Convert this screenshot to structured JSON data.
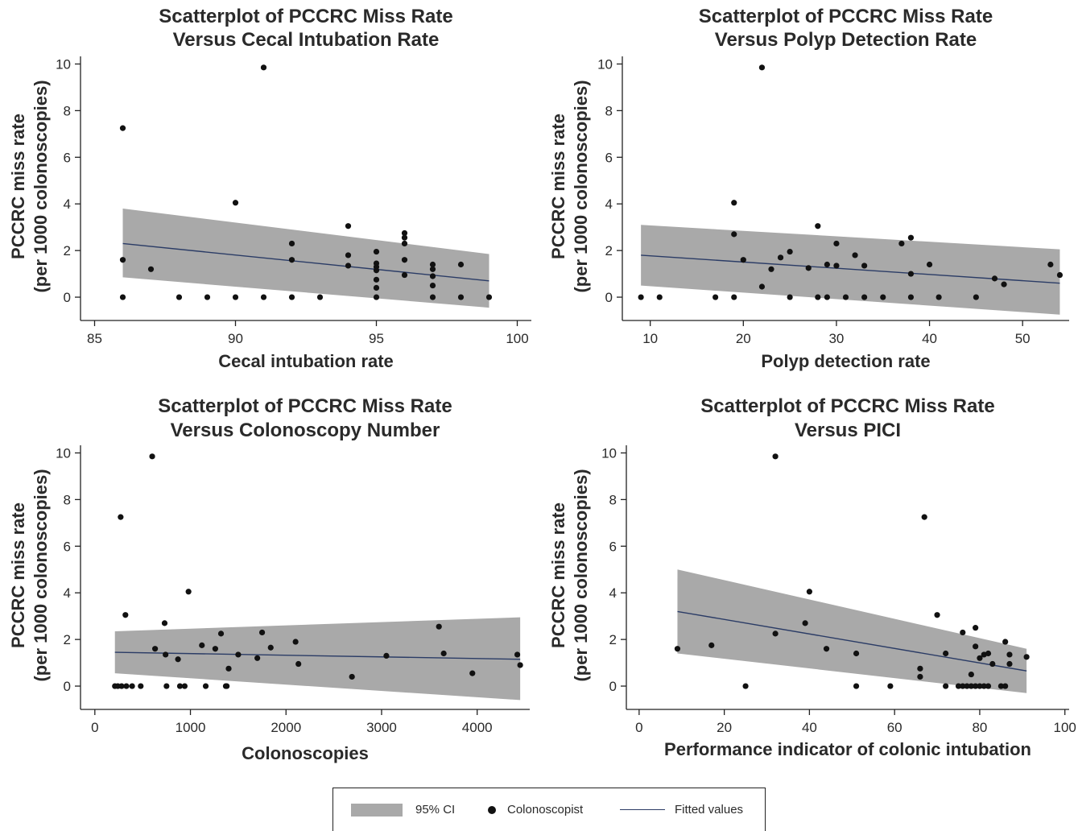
{
  "chart_data": [
    {
      "type": "scatter",
      "title_lines": [
        "Scatterplot of PCCRC Miss Rate",
        "Versus Cecal Intubation Rate"
      ],
      "xlabel": "Cecal intubation rate",
      "ylabel_lines": [
        "PCCRC miss rate",
        "(per 1000 colonoscopies)"
      ],
      "xlim": [
        84.5,
        100.5
      ],
      "ylim": [
        -1,
        10.5
      ],
      "xticks": [
        85,
        90,
        95,
        100
      ],
      "yticks": [
        0,
        2,
        4,
        6,
        8,
        10
      ],
      "grid": false,
      "points": [
        [
          86,
          7.25
        ],
        [
          86,
          1.6
        ],
        [
          86,
          0
        ],
        [
          87,
          1.2
        ],
        [
          88,
          0
        ],
        [
          89,
          0
        ],
        [
          90,
          4.05
        ],
        [
          90,
          0
        ],
        [
          91,
          9.85
        ],
        [
          91,
          0
        ],
        [
          92,
          2.3
        ],
        [
          92,
          1.6
        ],
        [
          92,
          0
        ],
        [
          93,
          0
        ],
        [
          94,
          3.05
        ],
        [
          94,
          1.8
        ],
        [
          94,
          1.35
        ],
        [
          95,
          1.95
        ],
        [
          95,
          1.45
        ],
        [
          95,
          1.3
        ],
        [
          95,
          1.15
        ],
        [
          95,
          0.75
        ],
        [
          95,
          0.4
        ],
        [
          95,
          0
        ],
        [
          96,
          2.75
        ],
        [
          96,
          2.55
        ],
        [
          96,
          2.3
        ],
        [
          96,
          1.6
        ],
        [
          96,
          0.95
        ],
        [
          97,
          1.4
        ],
        [
          97,
          1.2
        ],
        [
          97,
          0.9
        ],
        [
          97,
          0.5
        ],
        [
          97,
          0
        ],
        [
          98,
          1.4
        ],
        [
          98,
          0
        ],
        [
          99,
          0
        ]
      ],
      "fit": {
        "x": [
          86,
          99
        ],
        "y": [
          2.3,
          0.7
        ]
      },
      "ci": {
        "x": [
          86,
          99
        ],
        "upper": [
          3.8,
          1.85
        ],
        "lower": [
          0.85,
          -0.45
        ]
      }
    },
    {
      "type": "scatter",
      "title_lines": [
        "Scatterplot of PCCRC Miss Rate",
        "Versus Polyp Detection Rate"
      ],
      "xlabel": "Polyp detection rate",
      "ylabel_lines": [
        "PCCRC miss rate",
        "(per 1000 colonoscopies)"
      ],
      "xlim": [
        7,
        55
      ],
      "ylim": [
        -1,
        10.5
      ],
      "xticks": [
        10,
        20,
        30,
        40,
        50
      ],
      "yticks": [
        0,
        2,
        4,
        6,
        8,
        10
      ],
      "grid": false,
      "points": [
        [
          9,
          0
        ],
        [
          11,
          0
        ],
        [
          17,
          0
        ],
        [
          19,
          4.05
        ],
        [
          19,
          2.7
        ],
        [
          19,
          0
        ],
        [
          20,
          1.6
        ],
        [
          22,
          9.85
        ],
        [
          22,
          0.45
        ],
        [
          23,
          1.2
        ],
        [
          24,
          1.7
        ],
        [
          25,
          1.95
        ],
        [
          25,
          0
        ],
        [
          27,
          1.25
        ],
        [
          28,
          3.05
        ],
        [
          28,
          0
        ],
        [
          29,
          1.4
        ],
        [
          29,
          0
        ],
        [
          30,
          2.3
        ],
        [
          30,
          1.35
        ],
        [
          31,
          0
        ],
        [
          32,
          1.8
        ],
        [
          33,
          1.35
        ],
        [
          33,
          0
        ],
        [
          35,
          0
        ],
        [
          37,
          2.3
        ],
        [
          38,
          2.55
        ],
        [
          38,
          1.0
        ],
        [
          38,
          0
        ],
        [
          40,
          1.4
        ],
        [
          41,
          0
        ],
        [
          45,
          0
        ],
        [
          47,
          0.8
        ],
        [
          48,
          0.55
        ],
        [
          53,
          1.4
        ],
        [
          54,
          0.95
        ]
      ],
      "fit": {
        "x": [
          9,
          54
        ],
        "y": [
          1.8,
          0.6
        ]
      },
      "ci": {
        "x": [
          9,
          54
        ],
        "upper": [
          3.1,
          2.05
        ],
        "lower": [
          0.5,
          -0.75
        ]
      }
    },
    {
      "type": "scatter",
      "title_lines": [
        "Scatterplot of PCCRC Miss Rate",
        "Versus Colonoscopy Number"
      ],
      "xlabel": "Colonoscopies",
      "ylabel_lines": [
        "PCCRC miss rate",
        "(per 1000 colonoscopies)"
      ],
      "xlim": [
        -150,
        4550
      ],
      "ylim": [
        -1,
        10.5
      ],
      "xticks": [
        0,
        1000,
        2000,
        3000,
        4000
      ],
      "yticks": [
        0,
        2,
        4,
        6,
        8,
        10
      ],
      "grid": false,
      "points": [
        [
          210,
          0
        ],
        [
          240,
          0
        ],
        [
          270,
          7.25
        ],
        [
          280,
          0
        ],
        [
          320,
          3.05
        ],
        [
          330,
          0
        ],
        [
          390,
          0
        ],
        [
          480,
          0
        ],
        [
          600,
          9.85
        ],
        [
          630,
          1.6
        ],
        [
          730,
          2.7
        ],
        [
          740,
          1.35
        ],
        [
          750,
          0
        ],
        [
          870,
          1.15
        ],
        [
          890,
          0
        ],
        [
          940,
          0
        ],
        [
          980,
          4.05
        ],
        [
          1120,
          1.75
        ],
        [
          1160,
          0
        ],
        [
          1260,
          1.6
        ],
        [
          1320,
          2.25
        ],
        [
          1370,
          0
        ],
        [
          1380,
          0
        ],
        [
          1400,
          0.75
        ],
        [
          1500,
          1.35
        ],
        [
          1700,
          1.2
        ],
        [
          1750,
          2.3
        ],
        [
          1840,
          1.65
        ],
        [
          2100,
          1.9
        ],
        [
          2130,
          0.95
        ],
        [
          2690,
          0.4
        ],
        [
          3050,
          1.3
        ],
        [
          3600,
          2.55
        ],
        [
          3650,
          1.4
        ],
        [
          3950,
          0.55
        ],
        [
          4420,
          1.35
        ],
        [
          4450,
          0.9
        ]
      ],
      "fit": {
        "x": [
          210,
          4450
        ],
        "y": [
          1.45,
          1.15
        ]
      },
      "ci": {
        "x": [
          210,
          4450
        ],
        "upper": [
          2.35,
          2.95
        ],
        "lower": [
          0.55,
          -0.6
        ]
      }
    },
    {
      "type": "scatter",
      "title_lines": [
        "Scatterplot of PCCRC Miss Rate",
        "Versus PICI"
      ],
      "xlabel": "Performance indicator of colonic intubation",
      "ylabel_lines": [
        "PCCRC miss rate",
        "(per 1000 colonoscopies)"
      ],
      "xlim": [
        -3,
        101
      ],
      "ylim": [
        -1,
        10.5
      ],
      "xticks": [
        0,
        20,
        40,
        60,
        80,
        100
      ],
      "yticks": [
        0,
        2,
        4,
        6,
        8,
        10
      ],
      "grid": false,
      "points": [
        [
          9,
          1.6
        ],
        [
          17,
          1.75
        ],
        [
          25,
          0
        ],
        [
          32,
          9.85
        ],
        [
          32,
          2.25
        ],
        [
          39,
          2.7
        ],
        [
          40,
          4.05
        ],
        [
          44,
          1.6
        ],
        [
          51,
          1.4
        ],
        [
          51,
          0
        ],
        [
          59,
          0
        ],
        [
          66,
          0.75
        ],
        [
          66,
          0.4
        ],
        [
          67,
          7.25
        ],
        [
          70,
          3.05
        ],
        [
          72,
          1.4
        ],
        [
          72,
          0
        ],
        [
          75,
          0
        ],
        [
          76,
          2.3
        ],
        [
          76,
          0
        ],
        [
          77,
          0
        ],
        [
          78,
          0.5
        ],
        [
          78,
          0
        ],
        [
          79,
          2.5
        ],
        [
          79,
          1.7
        ],
        [
          79,
          0
        ],
        [
          80,
          1.2
        ],
        [
          80,
          0
        ],
        [
          81,
          1.35
        ],
        [
          81,
          0
        ],
        [
          82,
          1.4
        ],
        [
          82,
          0
        ],
        [
          83,
          0.95
        ],
        [
          85,
          0
        ],
        [
          86,
          1.9
        ],
        [
          86,
          0
        ],
        [
          87,
          1.35
        ],
        [
          87,
          0.95
        ],
        [
          91,
          1.25
        ]
      ],
      "fit": {
        "x": [
          9,
          91
        ],
        "y": [
          3.2,
          0.65
        ]
      },
      "ci": {
        "x": [
          9,
          91
        ],
        "upper": [
          5.0,
          1.6
        ],
        "lower": [
          1.4,
          -0.3
        ]
      }
    }
  ],
  "legend": {
    "ci_label": "95% CI",
    "points_label": "Colonoscopist",
    "fit_label": "Fitted values"
  },
  "colors": {
    "ci_band": "#a9a9a9",
    "fit_line": "#2b3c66",
    "points": "#111111"
  }
}
